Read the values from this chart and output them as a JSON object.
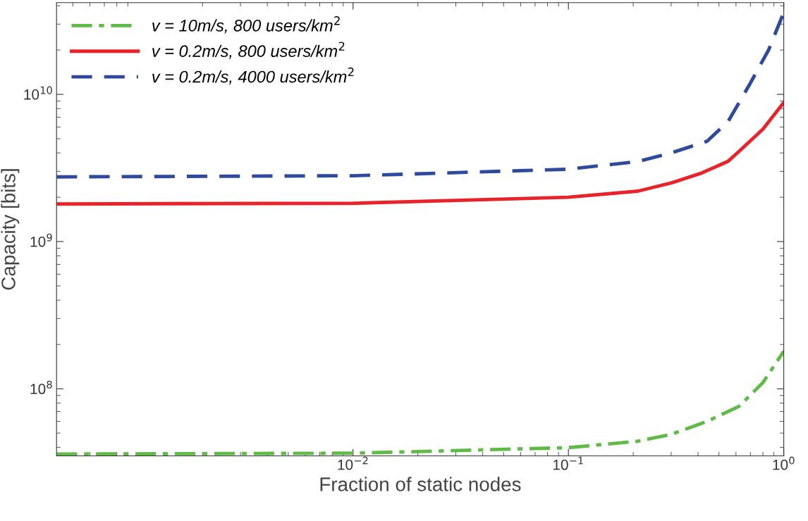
{
  "chart_data": {
    "type": "line",
    "xlabel": "Fraction of static nodes",
    "ylabel": "Capacity [bits]",
    "log": "xy",
    "grid": false,
    "legend": "top left",
    "marker": "none",
    "xlim": [
      0.00042,
      1
    ],
    "ylim": [
      35000000.0,
      42000000000.0
    ],
    "xticks": [
      {
        "value": 0.01,
        "label": "10$^{−2}$"
      },
      {
        "value": 0.1,
        "label": "10$^{−1}$"
      },
      {
        "value": 1,
        "label": "10$^{0}$"
      }
    ],
    "yticks": [
      {
        "value": 100000000.0,
        "label": "10$^{8}$"
      },
      {
        "value": 1000000000.0,
        "label": "10$^{9}$"
      },
      {
        "value": 10000000000.0,
        "label": "10$^{10}$"
      }
    ],
    "series": [
      {
        "name": "v = 10m/s, 800 users/km$^{2}$",
        "color": "#5dbb46",
        "line_style": "dashdot",
        "x": [
          0.00042,
          0.01,
          0.1,
          0.21,
          0.3,
          0.44,
          0.62,
          0.8,
          1
        ],
        "values": [
          36000000.0,
          36500000.0,
          39800000.0,
          44000000.0,
          49000000.0,
          60000000.0,
          76000000.0,
          110000000.0,
          180000000.0
        ]
      },
      {
        "name": "v = 0.2m/s, 800 users/km$^{2}$",
        "color": "#e8232a",
        "line_style": "solid",
        "x": [
          0.00042,
          0.01,
          0.1,
          0.21,
          0.3,
          0.41,
          0.55,
          0.62,
          0.8,
          1
        ],
        "values": [
          1800000000.0,
          1820000000.0,
          2000000000.0,
          2200000000.0,
          2500000000.0,
          2900000000.0,
          3500000000.0,
          4100000000.0,
          5800000000.0,
          8800000000.0
        ]
      },
      {
        "name": "v = 0.2m/s, 4000 users/km$^{2}$",
        "color": "#2e4a9e",
        "line_style": "dashed",
        "x": [
          0.00042,
          0.01,
          0.1,
          0.21,
          0.3,
          0.44,
          0.55,
          0.69,
          0.85,
          1
        ],
        "values": [
          2750000000.0,
          2800000000.0,
          3100000000.0,
          3500000000.0,
          4000000000.0,
          4800000000.0,
          6500000000.0,
          11500000000.0,
          20000000000.0,
          36000000000.0
        ]
      }
    ]
  }
}
